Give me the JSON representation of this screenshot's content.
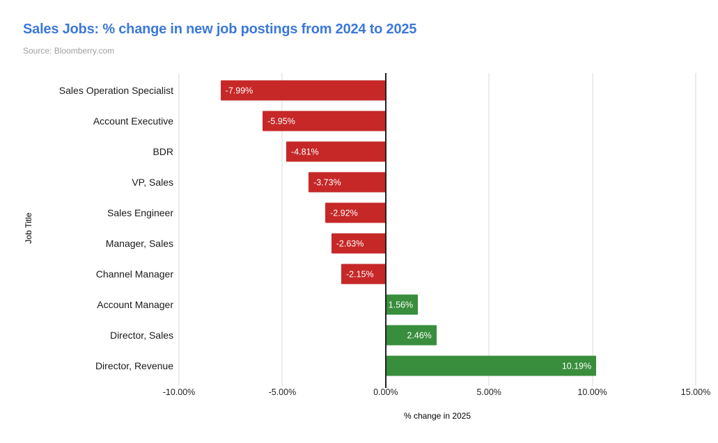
{
  "header": {
    "title": "Sales Jobs: % change in new job postings from 2024 to 2025",
    "title_color": "#3c78d8",
    "source": "Source: Bloomberry.com",
    "source_color": "#9e9e9e"
  },
  "chart_data": {
    "type": "bar",
    "orientation": "horizontal",
    "title": "Sales Jobs: % change in new job postings from 2024 to 2025",
    "xlabel": "% change in 2025",
    "ylabel": "Job Title",
    "xlim": [
      -10,
      15
    ],
    "x_ticks": [
      -10,
      -5,
      0,
      5,
      10,
      15
    ],
    "x_tick_labels": [
      "-10.00%",
      "-5.00%",
      "0.00%",
      "5.00%",
      "10.00%",
      "15.00%"
    ],
    "grid": true,
    "legend": false,
    "categories": [
      "Sales Operation Specialist",
      "Account Executive",
      "BDR",
      "VP, Sales",
      "Sales Engineer",
      "Manager, Sales",
      "Channel Manager",
      "Account Manager",
      "Director, Sales",
      "Director, Revenue"
    ],
    "values": [
      -7.99,
      -5.95,
      -4.81,
      -3.73,
      -2.92,
      -2.63,
      -2.15,
      1.56,
      2.46,
      10.19
    ],
    "value_labels": [
      "-7.99%",
      "-5.95%",
      "-4.81%",
      "-3.73%",
      "-2.92%",
      "-2.63%",
      "-2.15%",
      "1.56%",
      "2.46%",
      "10.19%"
    ],
    "negative_color": "#c62828",
    "positive_color": "#388e3c",
    "gridline_color": "#d9d9d9",
    "zero_line_color": "#212121",
    "background": "#ffffff"
  }
}
